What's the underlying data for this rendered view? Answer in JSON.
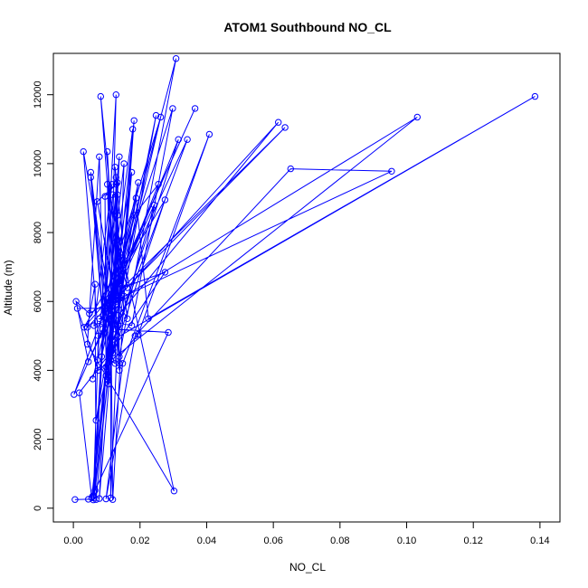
{
  "chart_data": {
    "type": "line",
    "title": "ATOM1 Southbound NO_CL",
    "xlabel": "NO_CL",
    "ylabel": "Altitude (m)",
    "xlim": [
      -0.006,
      0.146
    ],
    "ylim": [
      -400,
      13200
    ],
    "xticks": [
      0.0,
      0.02,
      0.04,
      0.06,
      0.08,
      0.1,
      0.12,
      0.14
    ],
    "xtick_labels": [
      "0.00",
      "0.02",
      "0.04",
      "0.06",
      "0.08",
      "0.10",
      "0.12",
      "0.14"
    ],
    "yticks": [
      0,
      2000,
      4000,
      6000,
      8000,
      10000,
      12000
    ],
    "ytick_labels": [
      "0",
      "2000",
      "4000",
      "6000",
      "8000",
      "10000",
      "12000"
    ],
    "grid": false,
    "legend": "none",
    "color": "#0000ff",
    "marker": "open-circle",
    "series": [
      {
        "points": [
          [
            0.0005,
            250
          ],
          [
            0.0045,
            260
          ],
          [
            0.006,
            240
          ],
          [
            0.0075,
            5000
          ],
          [
            0.003,
            10350
          ],
          [
            0.0125,
            5200
          ],
          [
            0.0285,
            5100
          ],
          [
            0.0065,
            520
          ],
          [
            0.0105,
            3800
          ],
          [
            0.0052,
            9750
          ],
          [
            0.0118,
            4500
          ],
          [
            0.0102,
            9400
          ],
          [
            0.0302,
            500
          ],
          [
            0.0042,
            4760
          ],
          [
            0.0078,
            10200
          ],
          [
            0.009,
            5400
          ],
          [
            0.006,
            350
          ],
          [
            0.0128,
            12000
          ],
          [
            0.0112,
            5900
          ],
          [
            0.0112,
            300
          ],
          [
            0.0135,
            5600
          ],
          [
            0.0615,
            11200
          ],
          [
            0.0128,
            6050
          ],
          [
            0.0078,
            280
          ],
          [
            0.0108,
            6100
          ],
          [
            0.0365,
            11600
          ],
          [
            0.0095,
            5800
          ],
          [
            0.0062,
            300
          ],
          [
            0.0122,
            6200
          ],
          [
            0.0308,
            13050
          ],
          [
            0.0138,
            4400
          ],
          [
            0.0195,
            5050
          ],
          [
            0.0408,
            10850
          ],
          [
            0.0148,
            4200
          ],
          [
            0.0098,
            270
          ],
          [
            0.0185,
            5000
          ],
          [
            0.0652,
            9850
          ],
          [
            0.0955,
            9780
          ],
          [
            0.0142,
            6100
          ],
          [
            0.0082,
            11950
          ],
          [
            0.0128,
            6100
          ],
          [
            0.0042,
            5250
          ],
          [
            0.0065,
            6500
          ],
          [
            0.0068,
            250
          ],
          [
            0.0125,
            6050
          ],
          [
            0.0635,
            11050
          ],
          [
            0.0148,
            6400
          ],
          [
            0.0275,
            6850
          ],
          [
            0.0118,
            4600
          ],
          [
            0.0018,
            3350
          ],
          [
            0.0055,
            300
          ],
          [
            0.0098,
            4100
          ],
          [
            0.0248,
            11400
          ],
          [
            0.0135,
            5300
          ],
          [
            0.0068,
            2550
          ],
          [
            0.0148,
            7200
          ],
          [
            0.0002,
            3300
          ],
          [
            0.0088,
            5200
          ],
          [
            0.0138,
            10200
          ],
          [
            0.0118,
            6050
          ],
          [
            0.0058,
            350
          ],
          [
            0.0115,
            5600
          ],
          [
            0.0152,
            6150
          ],
          [
            0.0118,
            250
          ],
          [
            0.0112,
            6200
          ],
          [
            0.0128,
            9400
          ],
          [
            0.0072,
            8900
          ],
          [
            0.0122,
            6200
          ],
          [
            0.0182,
            8500
          ],
          [
            0.0255,
            9400
          ],
          [
            0.0118,
            6050
          ],
          [
            0.0105,
            3600
          ],
          [
            0.0195,
            9450
          ],
          [
            0.0118,
            6050
          ],
          [
            0.0342,
            10700
          ],
          [
            0.0108,
            4600
          ],
          [
            0.0052,
            9600
          ],
          [
            0.0092,
            5100
          ],
          [
            0.0152,
            10000
          ],
          [
            0.0135,
            5300
          ],
          [
            0.0178,
            11000
          ],
          [
            0.0095,
            5100
          ],
          [
            0.0175,
            9750
          ],
          [
            0.0152,
            7200
          ],
          [
            0.0032,
            5250
          ],
          [
            0.0118,
            6200
          ],
          [
            0.0132,
            8500
          ],
          [
            0.0085,
            4400
          ],
          [
            0.0188,
            9000
          ],
          [
            0.0225,
            5500
          ],
          [
            0.1385,
            11950
          ],
          [
            0.0122,
            4900
          ],
          [
            0.0315,
            10700
          ],
          [
            0.0118,
            6050
          ],
          [
            0.0048,
            5650
          ],
          [
            0.0008,
            6000
          ],
          [
            0.0045,
            4250
          ],
          [
            0.0135,
            6100
          ],
          [
            0.0262,
            11350
          ],
          [
            0.0092,
            6000
          ],
          [
            0.0275,
            8950
          ],
          [
            0.0098,
            3850
          ],
          [
            0.0095,
            9050
          ],
          [
            0.0132,
            9450
          ],
          [
            0.0125,
            4200
          ],
          [
            0.0112,
            4300
          ],
          [
            0.0242,
            8800
          ],
          [
            0.0118,
            6150
          ],
          [
            0.0138,
            7300
          ],
          [
            0.0108,
            5800
          ],
          [
            0.0012,
            5800
          ],
          [
            0.0075,
            4000
          ],
          [
            0.1032,
            11350
          ],
          [
            0.0128,
            6000
          ],
          [
            0.0125,
            7700
          ],
          [
            0.0162,
            6400
          ],
          [
            0.0125,
            9900
          ],
          [
            0.0145,
            6200
          ],
          [
            0.0182,
            11250
          ],
          [
            0.0102,
            3750
          ],
          [
            0.0118,
            6200
          ],
          [
            0.0102,
            10350
          ],
          [
            0.0138,
            4000
          ],
          [
            0.0128,
            9600
          ],
          [
            0.0125,
            6400
          ],
          [
            0.0058,
            3750
          ],
          [
            0.0118,
            6150
          ],
          [
            0.0132,
            7800
          ],
          [
            0.0162,
            5500
          ],
          [
            0.0128,
            6050
          ],
          [
            0.0095,
            6000
          ],
          [
            0.0118,
            9100
          ],
          [
            0.0132,
            9100
          ],
          [
            0.0138,
            4200
          ],
          [
            0.0125,
            6050
          ],
          [
            0.0122,
            6300
          ],
          [
            0.0298,
            11600
          ],
          [
            0.0175,
            5300
          ],
          [
            0.0078,
            5500
          ],
          [
            0.0118,
            5700
          ],
          [
            0.0118,
            4600
          ],
          [
            0.0108,
            5500
          ],
          [
            0.0062,
            5300
          ],
          [
            0.0115,
            9400
          ],
          [
            0.0072,
            4300
          ]
        ]
      }
    ]
  }
}
